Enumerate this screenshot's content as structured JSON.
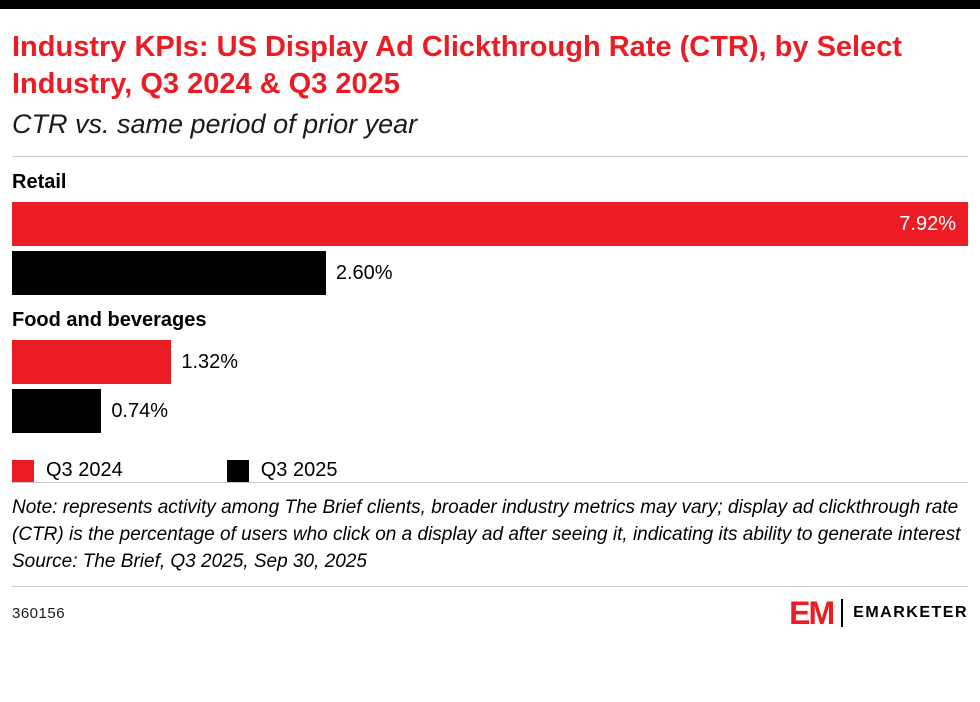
{
  "header": {
    "title": "Industry KPIs: US Display Ad Clickthrough Rate (CTR), by Select Industry, Q3 2024 & Q3 2025",
    "subtitle": "CTR vs. same period of prior year"
  },
  "chart_data": {
    "type": "bar",
    "orientation": "horizontal",
    "title": "Industry KPIs: US Display Ad Clickthrough Rate (CTR), by Select Industry, Q3 2024 & Q3 2025",
    "subtitle": "CTR vs. same period of prior year",
    "categories": [
      "Retail",
      "Food and beverages"
    ],
    "series": [
      {
        "name": "Q3 2024",
        "color": "#ec1c24",
        "values": [
          7.92,
          1.32
        ],
        "labels": [
          "7.92%",
          "1.32%"
        ]
      },
      {
        "name": "Q3 2025",
        "color": "#000000",
        "values": [
          2.6,
          0.74
        ],
        "labels": [
          "2.60%",
          "0.74%"
        ]
      }
    ],
    "max_value": 7.92,
    "xlim": [
      0,
      7.92
    ],
    "grid": false,
    "legend_position": "bottom",
    "legend": [
      {
        "label": "Q3 2024",
        "color": "#ec1c24"
      },
      {
        "label": "Q3 2025",
        "color": "#000000"
      }
    ]
  },
  "footnote": {
    "note": "Note: represents activity among The Brief clients, broader industry metrics may vary; display ad clickthrough rate (CTR) is the percentage of users who click on a display ad after seeing it, indicating its ability to generate interest",
    "source": "Source: The Brief, Q3 2025, Sep 30, 2025"
  },
  "footer": {
    "id": "360156",
    "brand_mark": "EM",
    "brand_name": "EMARKETER"
  },
  "colors": {
    "accent_red": "#ec1c24",
    "bar_black": "#000000"
  }
}
